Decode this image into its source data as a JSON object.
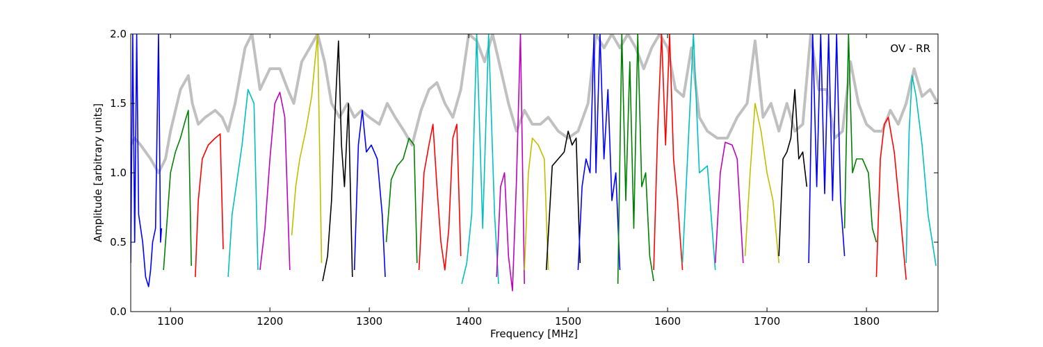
{
  "chart_data": {
    "type": "line",
    "xlabel": "Frequency [MHz]",
    "ylabel": "Amplitude [arbitrary units]",
    "annotation": "OV - RR",
    "xlim": [
      1060,
      1872
    ],
    "ylim": [
      0.0,
      2.0
    ],
    "x_ticks": [
      1100,
      1200,
      1300,
      1400,
      1500,
      1600,
      1700,
      1800
    ],
    "x_tick_labels": [
      "1100",
      "1200",
      "1300",
      "1400",
      "1500",
      "1600",
      "1700",
      "1800"
    ],
    "y_ticks": [
      0.0,
      0.5,
      1.0,
      1.5,
      2.0
    ],
    "y_tick_labels": [
      "0.0",
      "0.5",
      "1.0",
      "1.5",
      "2.0"
    ],
    "grid": false,
    "colors": {
      "background_series": "#c0c0c0",
      "palette": [
        "#0000ff",
        "#008000",
        "#ff0000",
        "#00bfbf",
        "#bf00bf",
        "#bfbf00",
        "#000000"
      ]
    },
    "background_series": {
      "color": "#c0c0c0",
      "x": [
        1060,
        1064,
        1070,
        1080,
        1088,
        1095,
        1100,
        1110,
        1118,
        1122,
        1128,
        1135,
        1145,
        1152,
        1158,
        1165,
        1175,
        1182,
        1190,
        1200,
        1210,
        1218,
        1224,
        1232,
        1240,
        1248,
        1255,
        1262,
        1270,
        1278,
        1285,
        1292,
        1300,
        1310,
        1318,
        1326,
        1335,
        1343,
        1352,
        1360,
        1368,
        1376,
        1384,
        1392,
        1400,
        1408,
        1416,
        1424,
        1432,
        1440,
        1448,
        1456,
        1464,
        1472,
        1480,
        1490,
        1500,
        1510,
        1520,
        1528,
        1536,
        1544,
        1552,
        1560,
        1568,
        1576,
        1584,
        1592,
        1600,
        1608,
        1616,
        1624,
        1632,
        1640,
        1650,
        1660,
        1670,
        1680,
        1688,
        1696,
        1704,
        1712,
        1720,
        1728,
        1736,
        1744,
        1752,
        1760,
        1768,
        1776,
        1784,
        1792,
        1800,
        1808,
        1816,
        1824,
        1832,
        1840,
        1848,
        1856,
        1864,
        1872
      ],
      "y": [
        1.2,
        1.25,
        1.2,
        1.1,
        1.0,
        1.1,
        1.3,
        1.6,
        1.7,
        1.5,
        1.35,
        1.4,
        1.45,
        1.4,
        1.3,
        1.5,
        1.9,
        2.0,
        1.6,
        1.75,
        1.75,
        1.6,
        1.5,
        1.8,
        1.9,
        2.0,
        1.8,
        1.5,
        1.4,
        1.5,
        1.4,
        1.45,
        1.4,
        1.35,
        1.5,
        1.4,
        1.3,
        1.2,
        1.45,
        1.6,
        1.65,
        1.5,
        1.4,
        1.6,
        2.0,
        1.95,
        1.8,
        2.0,
        1.75,
        1.5,
        1.3,
        1.45,
        1.35,
        1.35,
        1.4,
        1.3,
        1.25,
        1.3,
        1.5,
        2.0,
        1.9,
        2.0,
        1.9,
        2.0,
        1.9,
        1.75,
        1.9,
        2.0,
        1.9,
        1.6,
        1.55,
        1.9,
        1.4,
        1.3,
        1.25,
        1.25,
        1.4,
        1.5,
        1.95,
        1.4,
        1.5,
        1.3,
        1.5,
        1.3,
        1.35,
        2.0,
        1.6,
        1.6,
        1.25,
        1.3,
        1.8,
        1.5,
        1.35,
        1.3,
        1.3,
        1.45,
        1.35,
        1.5,
        1.75,
        1.55,
        1.6,
        1.5
      ]
    },
    "series": [
      {
        "color": "#0000ff",
        "x": [
          1060,
          1062,
          1064,
          1066,
          1068,
          1070,
          1072,
          1075,
          1078,
          1080,
          1082,
          1085,
          1088,
          1090,
          1091
        ],
        "y": [
          0.35,
          2.0,
          0.5,
          2.0,
          0.7,
          0.6,
          0.5,
          0.25,
          0.18,
          0.3,
          0.5,
          0.6,
          2.0,
          0.5,
          0.6
        ]
      },
      {
        "color": "#008000",
        "x": [
          1093,
          1096,
          1100,
          1105,
          1110,
          1115,
          1118,
          1121
        ],
        "y": [
          0.3,
          0.6,
          1.0,
          1.15,
          1.25,
          1.38,
          1.45,
          0.33
        ]
      },
      {
        "color": "#ff0000",
        "x": [
          1125,
          1128,
          1132,
          1138,
          1145,
          1150,
          1153
        ],
        "y": [
          0.25,
          0.8,
          1.1,
          1.2,
          1.25,
          1.28,
          0.45
        ]
      },
      {
        "color": "#00bfbf",
        "x": [
          1158,
          1162,
          1166,
          1172,
          1178,
          1184,
          1188
        ],
        "y": [
          0.25,
          0.7,
          0.9,
          1.2,
          1.6,
          1.5,
          0.3
        ]
      },
      {
        "color": "#bf00bf",
        "x": [
          1190,
          1195,
          1200,
          1205,
          1210,
          1215,
          1220
        ],
        "y": [
          0.3,
          0.6,
          1.1,
          1.5,
          1.58,
          1.4,
          0.3
        ]
      },
      {
        "color": "#bfbf00",
        "x": [
          1222,
          1226,
          1230,
          1236,
          1242,
          1248,
          1252
        ],
        "y": [
          0.55,
          0.9,
          1.1,
          1.3,
          1.55,
          2.0,
          0.35
        ]
      },
      {
        "color": "#000000",
        "x": [
          1253,
          1258,
          1262,
          1266,
          1269,
          1272,
          1275,
          1279,
          1283
        ],
        "y": [
          0.22,
          0.4,
          0.8,
          1.5,
          1.95,
          1.2,
          0.9,
          1.5,
          0.25
        ]
      },
      {
        "color": "#0000ff",
        "x": [
          1285,
          1289,
          1293,
          1297,
          1302,
          1308,
          1313,
          1316
        ],
        "y": [
          0.3,
          1.2,
          1.45,
          1.15,
          1.2,
          1.1,
          0.7,
          0.25
        ]
      },
      {
        "color": "#008000",
        "x": [
          1317,
          1322,
          1328,
          1334,
          1340,
          1345,
          1348
        ],
        "y": [
          0.5,
          0.95,
          1.05,
          1.1,
          1.25,
          1.2,
          0.35
        ]
      },
      {
        "color": "#ff0000",
        "x": [
          1350,
          1355,
          1360,
          1364,
          1368,
          1372,
          1376,
          1380,
          1384,
          1388,
          1392
        ],
        "y": [
          0.3,
          1.0,
          1.2,
          1.35,
          0.9,
          0.5,
          0.3,
          0.6,
          1.25,
          1.35,
          0.4
        ]
      },
      {
        "color": "#00bfbf",
        "x": [
          1393,
          1398,
          1403,
          1408,
          1414,
          1420,
          1426,
          1430
        ],
        "y": [
          0.2,
          0.35,
          0.7,
          2.0,
          0.6,
          2.0,
          0.7,
          0.2
        ]
      },
      {
        "color": "#bf00bf",
        "x": [
          1428,
          1432,
          1436,
          1440,
          1444,
          1448,
          1452,
          1456
        ],
        "y": [
          0.25,
          0.9,
          1.0,
          0.4,
          0.15,
          0.95,
          2.0,
          0.2
        ]
      },
      {
        "color": "#bfbf00",
        "x": [
          1456,
          1460,
          1464,
          1470,
          1476,
          1480
        ],
        "y": [
          0.3,
          1.0,
          1.25,
          1.2,
          1.1,
          0.3
        ]
      },
      {
        "color": "#000000",
        "x": [
          1478,
          1484,
          1490,
          1496,
          1500,
          1504,
          1508,
          1512
        ],
        "y": [
          0.3,
          1.05,
          1.1,
          1.15,
          1.3,
          1.2,
          1.25,
          0.35
        ]
      },
      {
        "color": "#0000ff",
        "x": [
          1510,
          1514,
          1518,
          1522,
          1526,
          1528,
          1532,
          1536,
          1540,
          1544,
          1548,
          1552
        ],
        "y": [
          0.3,
          0.9,
          1.1,
          1.0,
          2.0,
          1.0,
          2.0,
          1.1,
          1.6,
          0.8,
          1.0,
          0.3
        ]
      },
      {
        "color": "#008000",
        "x": [
          1550,
          1554,
          1558,
          1562,
          1566,
          1570,
          1574,
          1578,
          1582,
          1586
        ],
        "y": [
          0.2,
          2.0,
          0.8,
          1.8,
          0.6,
          2.0,
          0.9,
          1.0,
          0.4,
          0.22
        ]
      },
      {
        "color": "#ff0000",
        "x": [
          1586,
          1590,
          1594,
          1598,
          1602,
          1606,
          1610,
          1615
        ],
        "y": [
          0.3,
          1.3,
          2.0,
          1.2,
          2.0,
          1.1,
          0.8,
          0.3
        ]
      },
      {
        "color": "#00bfbf",
        "x": [
          1615,
          1620,
          1626,
          1632,
          1640,
          1648
        ],
        "y": [
          0.35,
          1.1,
          2.0,
          1.0,
          1.05,
          0.3
        ]
      },
      {
        "color": "#bf00bf",
        "x": [
          1648,
          1653,
          1658,
          1665,
          1670,
          1676
        ],
        "y": [
          0.35,
          1.0,
          1.22,
          1.2,
          1.1,
          0.35
        ]
      },
      {
        "color": "#bfbf00",
        "x": [
          1678,
          1683,
          1688,
          1694,
          1700,
          1706,
          1712
        ],
        "y": [
          0.4,
          1.0,
          1.5,
          1.3,
          1.0,
          0.8,
          0.35
        ]
      },
      {
        "color": "#000000",
        "x": [
          1712,
          1716,
          1720,
          1724,
          1728,
          1732,
          1736,
          1740
        ],
        "y": [
          0.4,
          1.1,
          1.15,
          1.25,
          1.6,
          1.1,
          1.15,
          0.9
        ]
      },
      {
        "color": "#0000ff",
        "x": [
          1742,
          1746,
          1750,
          1754,
          1758,
          1762,
          1766,
          1770,
          1774,
          1778
        ],
        "y": [
          0.35,
          2.0,
          0.9,
          2.0,
          0.85,
          2.0,
          0.8,
          2.0,
          0.8,
          0.4
        ]
      },
      {
        "color": "#008000",
        "x": [
          1778,
          1782,
          1786,
          1790,
          1796,
          1802,
          1806,
          1810
        ],
        "y": [
          0.6,
          2.0,
          1.0,
          1.1,
          1.1,
          1.0,
          0.6,
          0.5
        ]
      },
      {
        "color": "#ff0000",
        "x": [
          1810,
          1814,
          1818,
          1822,
          1828,
          1834,
          1840
        ],
        "y": [
          0.25,
          1.1,
          1.35,
          1.4,
          1.15,
          0.7,
          0.23
        ]
      },
      {
        "color": "#00bfbf",
        "x": [
          1840,
          1843,
          1846,
          1850,
          1856,
          1862,
          1870
        ],
        "y": [
          0.35,
          1.3,
          1.7,
          1.55,
          1.2,
          0.7,
          0.33
        ]
      }
    ]
  }
}
